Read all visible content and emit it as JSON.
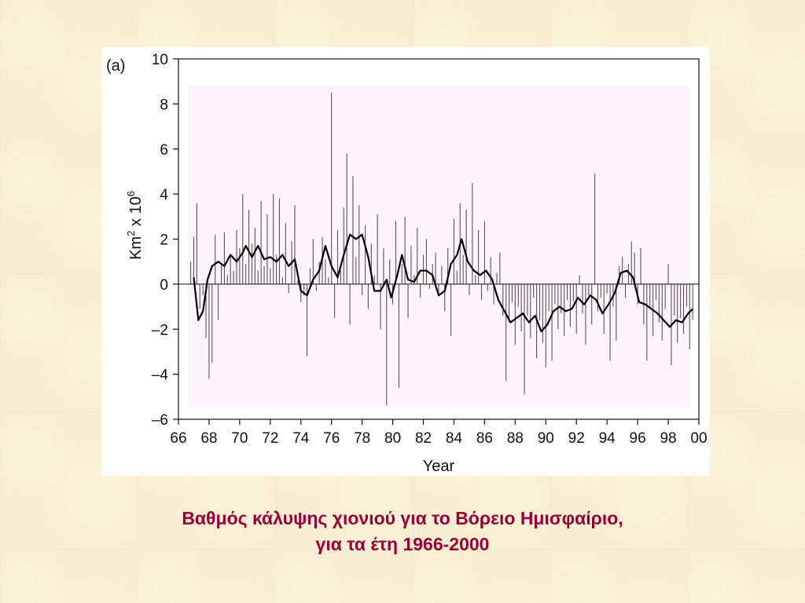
{
  "caption": {
    "line1": "Βαθμός κάλυψης χιονιού για το Βόρειο Ημισφαίριο,",
    "line2": "για τα έτη 1966-2000"
  },
  "chart_data": {
    "type": "bar",
    "panel_label": "(a)",
    "xlabel": "Year",
    "ylabel_base": "Km",
    "ylabel_sup1": "2",
    "ylabel_mid": " x 10",
    "ylabel_sup2": "6",
    "xlim": [
      1966,
      2000
    ],
    "ylim": [
      -6,
      10
    ],
    "x_ticks": [
      {
        "value": 1966,
        "label": "66"
      },
      {
        "value": 1968,
        "label": "68"
      },
      {
        "value": 1970,
        "label": "70"
      },
      {
        "value": 1972,
        "label": "72"
      },
      {
        "value": 1974,
        "label": "74"
      },
      {
        "value": 1976,
        "label": "76"
      },
      {
        "value": 1978,
        "label": "78"
      },
      {
        "value": 1980,
        "label": "80"
      },
      {
        "value": 1982,
        "label": "82"
      },
      {
        "value": 1984,
        "label": "84"
      },
      {
        "value": 1986,
        "label": "86"
      },
      {
        "value": 1988,
        "label": "88"
      },
      {
        "value": 1990,
        "label": "90"
      },
      {
        "value": 1992,
        "label": "92"
      },
      {
        "value": 1994,
        "label": "94"
      },
      {
        "value": 1996,
        "label": "96"
      },
      {
        "value": 1998,
        "label": "98"
      },
      {
        "value": 2000,
        "label": "00"
      }
    ],
    "y_ticks": [
      {
        "value": 10,
        "label": "10"
      },
      {
        "value": 8,
        "label": "8"
      },
      {
        "value": 6,
        "label": "6"
      },
      {
        "value": 4,
        "label": "4"
      },
      {
        "value": 2,
        "label": "2"
      },
      {
        "value": 0,
        "label": "0"
      },
      {
        "value": -2,
        "label": "–2"
      },
      {
        "value": -4,
        "label": "–4"
      },
      {
        "value": -6,
        "label": "–6"
      }
    ],
    "anomaly_colors": {
      "bars": "#555555",
      "smooth_line": "#000000",
      "plot_background": "#fcf4fb"
    },
    "monthly_anomalies": [
      {
        "x": 1966.8,
        "y": 1.0
      },
      {
        "x": 1967.0,
        "y": 2.1
      },
      {
        "x": 1967.2,
        "y": 3.6
      },
      {
        "x": 1967.4,
        "y": -1.1
      },
      {
        "x": 1967.6,
        "y": -0.5
      },
      {
        "x": 1967.8,
        "y": -2.4
      },
      {
        "x": 1968.0,
        "y": -4.2
      },
      {
        "x": 1968.2,
        "y": -3.5
      },
      {
        "x": 1968.4,
        "y": 2.2
      },
      {
        "x": 1968.6,
        "y": -1.6
      },
      {
        "x": 1968.8,
        "y": 0.9
      },
      {
        "x": 1969.0,
        "y": 2.3
      },
      {
        "x": 1969.2,
        "y": 0.4
      },
      {
        "x": 1969.4,
        "y": 1.3
      },
      {
        "x": 1969.6,
        "y": 0.6
      },
      {
        "x": 1969.8,
        "y": 2.4
      },
      {
        "x": 1970.0,
        "y": 1.6
      },
      {
        "x": 1970.2,
        "y": 4.0
      },
      {
        "x": 1970.4,
        "y": 0.9
      },
      {
        "x": 1970.6,
        "y": 3.3
      },
      {
        "x": 1970.8,
        "y": 1.8
      },
      {
        "x": 1971.0,
        "y": 2.5
      },
      {
        "x": 1971.2,
        "y": 0.6
      },
      {
        "x": 1971.4,
        "y": 3.7
      },
      {
        "x": 1971.6,
        "y": 0.8
      },
      {
        "x": 1971.8,
        "y": 3.1
      },
      {
        "x": 1972.0,
        "y": 0.7
      },
      {
        "x": 1972.2,
        "y": 4.0
      },
      {
        "x": 1972.4,
        "y": 1.3
      },
      {
        "x": 1972.6,
        "y": 3.8
      },
      {
        "x": 1972.8,
        "y": 0.3
      },
      {
        "x": 1973.0,
        "y": 2.7
      },
      {
        "x": 1973.2,
        "y": -0.4
      },
      {
        "x": 1973.4,
        "y": 1.9
      },
      {
        "x": 1973.6,
        "y": 3.5
      },
      {
        "x": 1973.8,
        "y": 0.2
      },
      {
        "x": 1974.0,
        "y": -0.8
      },
      {
        "x": 1974.2,
        "y": -0.5
      },
      {
        "x": 1974.4,
        "y": -3.2
      },
      {
        "x": 1974.6,
        "y": 0.7
      },
      {
        "x": 1974.8,
        "y": 2.0
      },
      {
        "x": 1975.0,
        "y": -0.3
      },
      {
        "x": 1975.2,
        "y": 1.0
      },
      {
        "x": 1975.4,
        "y": 2.1
      },
      {
        "x": 1975.6,
        "y": 1.1
      },
      {
        "x": 1975.8,
        "y": 0.3
      },
      {
        "x": 1976.0,
        "y": 8.5
      },
      {
        "x": 1976.2,
        "y": -1.5
      },
      {
        "x": 1976.4,
        "y": 2.4
      },
      {
        "x": 1976.6,
        "y": 0.6
      },
      {
        "x": 1976.8,
        "y": 3.4
      },
      {
        "x": 1977.0,
        "y": 5.8
      },
      {
        "x": 1977.2,
        "y": -1.8
      },
      {
        "x": 1977.4,
        "y": 4.8
      },
      {
        "x": 1977.6,
        "y": 1.2
      },
      {
        "x": 1977.8,
        "y": 3.5
      },
      {
        "x": 1978.0,
        "y": -0.5
      },
      {
        "x": 1978.2,
        "y": 2.6
      },
      {
        "x": 1978.4,
        "y": -1.1
      },
      {
        "x": 1978.6,
        "y": 1.8
      },
      {
        "x": 1978.8,
        "y": 0.4
      },
      {
        "x": 1979.0,
        "y": 3.1
      },
      {
        "x": 1979.2,
        "y": -2.0
      },
      {
        "x": 1979.4,
        "y": 1.6
      },
      {
        "x": 1979.6,
        "y": -5.4
      },
      {
        "x": 1979.8,
        "y": 1.1
      },
      {
        "x": 1980.0,
        "y": -0.9
      },
      {
        "x": 1980.2,
        "y": 2.8
      },
      {
        "x": 1980.4,
        "y": -4.6
      },
      {
        "x": 1980.6,
        "y": 0.9
      },
      {
        "x": 1980.8,
        "y": 3.0
      },
      {
        "x": 1981.0,
        "y": -1.5
      },
      {
        "x": 1981.2,
        "y": 1.7
      },
      {
        "x": 1981.4,
        "y": 0.4
      },
      {
        "x": 1981.6,
        "y": 2.5
      },
      {
        "x": 1981.8,
        "y": -0.6
      },
      {
        "x": 1982.0,
        "y": 1.3
      },
      {
        "x": 1982.2,
        "y": 2.0
      },
      {
        "x": 1982.4,
        "y": -0.2
      },
      {
        "x": 1982.6,
        "y": 0.9
      },
      {
        "x": 1982.8,
        "y": 1.4
      },
      {
        "x": 1983.0,
        "y": -0.4
      },
      {
        "x": 1983.2,
        "y": 0.8
      },
      {
        "x": 1983.4,
        "y": -1.2
      },
      {
        "x": 1983.6,
        "y": 1.6
      },
      {
        "x": 1983.8,
        "y": -2.3
      },
      {
        "x": 1984.0,
        "y": 2.9
      },
      {
        "x": 1984.2,
        "y": 0.6
      },
      {
        "x": 1984.4,
        "y": 3.6
      },
      {
        "x": 1984.6,
        "y": 1.3
      },
      {
        "x": 1984.8,
        "y": 3.3
      },
      {
        "x": 1985.0,
        "y": -0.5
      },
      {
        "x": 1985.2,
        "y": 4.5
      },
      {
        "x": 1985.4,
        "y": 0.4
      },
      {
        "x": 1985.6,
        "y": 2.4
      },
      {
        "x": 1985.8,
        "y": -0.7
      },
      {
        "x": 1986.0,
        "y": 2.8
      },
      {
        "x": 1986.2,
        "y": -0.3
      },
      {
        "x": 1986.4,
        "y": 1.2
      },
      {
        "x": 1986.6,
        "y": -0.9
      },
      {
        "x": 1986.8,
        "y": 0.5
      },
      {
        "x": 1987.0,
        "y": 1.4
      },
      {
        "x": 1987.2,
        "y": -1.4
      },
      {
        "x": 1987.4,
        "y": -4.3
      },
      {
        "x": 1987.6,
        "y": -1.7
      },
      {
        "x": 1987.8,
        "y": -0.8
      },
      {
        "x": 1988.0,
        "y": -2.7
      },
      {
        "x": 1988.2,
        "y": -1.0
      },
      {
        "x": 1988.4,
        "y": -2.1
      },
      {
        "x": 1988.6,
        "y": -4.9
      },
      {
        "x": 1988.8,
        "y": -1.4
      },
      {
        "x": 1989.0,
        "y": -2.4
      },
      {
        "x": 1989.2,
        "y": -0.6
      },
      {
        "x": 1989.4,
        "y": -3.3
      },
      {
        "x": 1989.6,
        "y": -1.6
      },
      {
        "x": 1989.8,
        "y": -2.6
      },
      {
        "x": 1990.0,
        "y": -3.7
      },
      {
        "x": 1990.2,
        "y": -1.2
      },
      {
        "x": 1990.4,
        "y": -3.4
      },
      {
        "x": 1990.6,
        "y": -0.9
      },
      {
        "x": 1990.8,
        "y": -2.0
      },
      {
        "x": 1991.0,
        "y": -1.3
      },
      {
        "x": 1991.2,
        "y": -2.3
      },
      {
        "x": 1991.4,
        "y": -0.7
      },
      {
        "x": 1991.6,
        "y": -1.9
      },
      {
        "x": 1991.8,
        "y": -0.8
      },
      {
        "x": 1992.0,
        "y": -2.2
      },
      {
        "x": 1992.2,
        "y": 0.4
      },
      {
        "x": 1992.4,
        "y": -1.3
      },
      {
        "x": 1992.6,
        "y": -2.7
      },
      {
        "x": 1992.8,
        "y": -0.5
      },
      {
        "x": 1993.0,
        "y": -1.8
      },
      {
        "x": 1993.2,
        "y": 4.9
      },
      {
        "x": 1993.4,
        "y": -1.2
      },
      {
        "x": 1993.6,
        "y": -0.6
      },
      {
        "x": 1993.8,
        "y": -2.2
      },
      {
        "x": 1994.0,
        "y": -0.4
      },
      {
        "x": 1994.2,
        "y": -3.4
      },
      {
        "x": 1994.4,
        "y": -1.0
      },
      {
        "x": 1994.6,
        "y": -2.5
      },
      {
        "x": 1994.8,
        "y": 0.8
      },
      {
        "x": 1995.0,
        "y": 1.2
      },
      {
        "x": 1995.2,
        "y": -0.6
      },
      {
        "x": 1995.4,
        "y": 0.9
      },
      {
        "x": 1995.6,
        "y": 1.9
      },
      {
        "x": 1995.8,
        "y": 1.4
      },
      {
        "x": 1996.0,
        "y": -0.9
      },
      {
        "x": 1996.2,
        "y": 1.6
      },
      {
        "x": 1996.4,
        "y": -1.8
      },
      {
        "x": 1996.6,
        "y": -3.4
      },
      {
        "x": 1996.8,
        "y": -1.0
      },
      {
        "x": 1997.0,
        "y": -2.3
      },
      {
        "x": 1997.2,
        "y": -0.7
      },
      {
        "x": 1997.4,
        "y": -1.7
      },
      {
        "x": 1997.6,
        "y": -2.5
      },
      {
        "x": 1997.8,
        "y": -1.1
      },
      {
        "x": 1998.0,
        "y": 0.9
      },
      {
        "x": 1998.2,
        "y": -3.6
      },
      {
        "x": 1998.4,
        "y": -1.4
      },
      {
        "x": 1998.6,
        "y": -2.6
      },
      {
        "x": 1998.8,
        "y": -1.5
      },
      {
        "x": 1999.0,
        "y": -2.2
      },
      {
        "x": 1999.2,
        "y": -1.0
      },
      {
        "x": 1999.4,
        "y": -2.9
      },
      {
        "x": 1999.6,
        "y": -1.6
      }
    ],
    "smoothed": [
      {
        "x": 1967.0,
        "y": 0.3
      },
      {
        "x": 1967.3,
        "y": -1.6
      },
      {
        "x": 1967.6,
        "y": -1.2
      },
      {
        "x": 1967.9,
        "y": 0.2
      },
      {
        "x": 1968.2,
        "y": 0.8
      },
      {
        "x": 1968.6,
        "y": 1.0
      },
      {
        "x": 1969.0,
        "y": 0.8
      },
      {
        "x": 1969.4,
        "y": 1.3
      },
      {
        "x": 1969.8,
        "y": 1.0
      },
      {
        "x": 1970.2,
        "y": 1.4
      },
      {
        "x": 1970.4,
        "y": 1.7
      },
      {
        "x": 1970.8,
        "y": 1.2
      },
      {
        "x": 1971.2,
        "y": 1.7
      },
      {
        "x": 1971.6,
        "y": 1.1
      },
      {
        "x": 1972.0,
        "y": 1.2
      },
      {
        "x": 1972.4,
        "y": 1.0
      },
      {
        "x": 1972.8,
        "y": 1.3
      },
      {
        "x": 1973.2,
        "y": 0.8
      },
      {
        "x": 1973.6,
        "y": 1.1
      },
      {
        "x": 1974.0,
        "y": -0.3
      },
      {
        "x": 1974.4,
        "y": -0.5
      },
      {
        "x": 1974.8,
        "y": 0.2
      },
      {
        "x": 1975.2,
        "y": 0.6
      },
      {
        "x": 1975.6,
        "y": 1.7
      },
      {
        "x": 1976.0,
        "y": 0.8
      },
      {
        "x": 1976.4,
        "y": 0.3
      },
      {
        "x": 1976.8,
        "y": 1.3
      },
      {
        "x": 1977.2,
        "y": 2.2
      },
      {
        "x": 1977.6,
        "y": 2.0
      },
      {
        "x": 1978.0,
        "y": 2.2
      },
      {
        "x": 1978.4,
        "y": 1.2
      },
      {
        "x": 1978.8,
        "y": -0.3
      },
      {
        "x": 1979.2,
        "y": -0.3
      },
      {
        "x": 1979.6,
        "y": 0.2
      },
      {
        "x": 1979.9,
        "y": -0.6
      },
      {
        "x": 1980.3,
        "y": 0.4
      },
      {
        "x": 1980.6,
        "y": 1.3
      },
      {
        "x": 1981.0,
        "y": 0.2
      },
      {
        "x": 1981.4,
        "y": 0.1
      },
      {
        "x": 1981.8,
        "y": 0.6
      },
      {
        "x": 1982.2,
        "y": 0.6
      },
      {
        "x": 1982.6,
        "y": 0.4
      },
      {
        "x": 1983.0,
        "y": -0.5
      },
      {
        "x": 1983.4,
        "y": -0.3
      },
      {
        "x": 1983.8,
        "y": 0.9
      },
      {
        "x": 1984.2,
        "y": 1.3
      },
      {
        "x": 1984.5,
        "y": 2.0
      },
      {
        "x": 1984.9,
        "y": 1.0
      },
      {
        "x": 1985.3,
        "y": 0.6
      },
      {
        "x": 1985.7,
        "y": 0.4
      },
      {
        "x": 1986.1,
        "y": 0.6
      },
      {
        "x": 1986.5,
        "y": 0.2
      },
      {
        "x": 1986.9,
        "y": -0.7
      },
      {
        "x": 1987.3,
        "y": -1.2
      },
      {
        "x": 1987.7,
        "y": -1.7
      },
      {
        "x": 1988.1,
        "y": -1.5
      },
      {
        "x": 1988.5,
        "y": -1.3
      },
      {
        "x": 1988.9,
        "y": -1.7
      },
      {
        "x": 1989.3,
        "y": -1.4
      },
      {
        "x": 1989.7,
        "y": -2.1
      },
      {
        "x": 1990.1,
        "y": -1.8
      },
      {
        "x": 1990.5,
        "y": -1.2
      },
      {
        "x": 1990.9,
        "y": -1.0
      },
      {
        "x": 1991.3,
        "y": -1.2
      },
      {
        "x": 1991.7,
        "y": -1.1
      },
      {
        "x": 1992.1,
        "y": -0.6
      },
      {
        "x": 1992.5,
        "y": -0.9
      },
      {
        "x": 1992.9,
        "y": -0.5
      },
      {
        "x": 1993.3,
        "y": -0.7
      },
      {
        "x": 1993.7,
        "y": -1.3
      },
      {
        "x": 1994.1,
        "y": -0.9
      },
      {
        "x": 1994.5,
        "y": -0.4
      },
      {
        "x": 1994.9,
        "y": 0.5
      },
      {
        "x": 1995.3,
        "y": 0.6
      },
      {
        "x": 1995.7,
        "y": 0.3
      },
      {
        "x": 1996.1,
        "y": -0.8
      },
      {
        "x": 1996.5,
        "y": -0.9
      },
      {
        "x": 1996.9,
        "y": -1.1
      },
      {
        "x": 1997.3,
        "y": -1.3
      },
      {
        "x": 1997.7,
        "y": -1.6
      },
      {
        "x": 1998.1,
        "y": -1.9
      },
      {
        "x": 1998.5,
        "y": -1.6
      },
      {
        "x": 1998.9,
        "y": -1.7
      },
      {
        "x": 1999.3,
        "y": -1.3
      },
      {
        "x": 1999.6,
        "y": -1.1
      }
    ]
  }
}
